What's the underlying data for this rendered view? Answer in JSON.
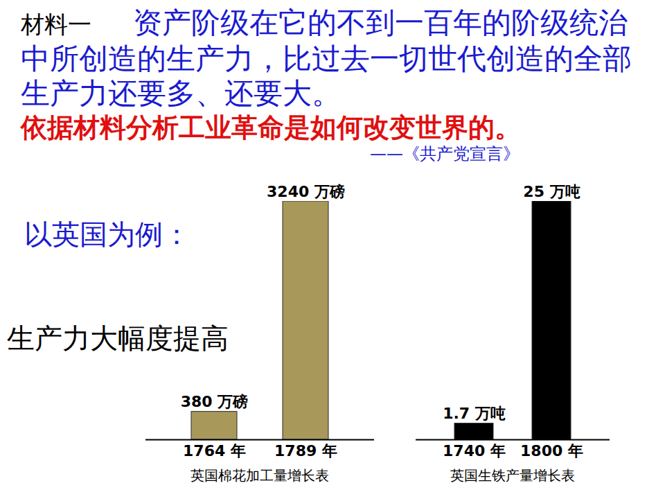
{
  "material_label": "材料一",
  "quote": "资产阶级在它的不到一百年的阶级统治中所创造的生产力，比过去一切世代创造的全部生产力还要多、还要大。",
  "source": "——《共产党宣言》",
  "question": "依据材料分析工业革命是如何改变世界的。",
  "example_label": "以英国为例：",
  "conclusion": "生产力大幅度提高",
  "chart_data": [
    {
      "type": "bar",
      "title": "英国棉花加工量增长表",
      "categories": [
        "1764 年",
        "1789 年"
      ],
      "values": [
        380,
        3240
      ],
      "value_labels": [
        "380 万磅",
        "3240 万磅"
      ],
      "data_labels": true,
      "color": "#a8985a",
      "ylim": [
        0,
        3240
      ],
      "grid": false,
      "tick_labels": "x"
    },
    {
      "type": "bar",
      "title": "英国生铁产量增长表",
      "categories": [
        "1740 年",
        "1800 年"
      ],
      "values": [
        1.7,
        25
      ],
      "value_labels": [
        "1.7 万吨",
        "25 万吨"
      ],
      "data_labels": true,
      "color": "#000000",
      "ylim": [
        0,
        25
      ],
      "grid": false,
      "tick_labels": "x"
    }
  ]
}
